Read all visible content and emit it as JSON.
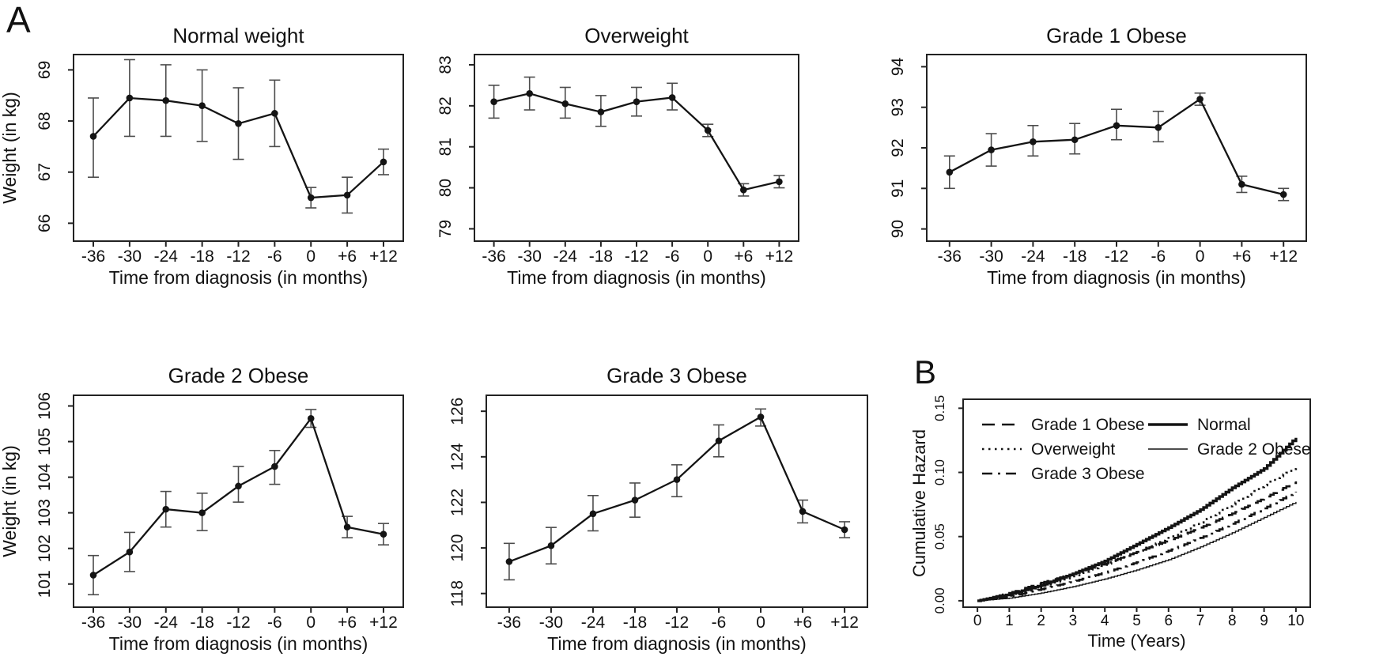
{
  "panel_a_label": "A",
  "panel_b_label": "B",
  "chart_data": [
    {
      "type": "line",
      "panel": "A",
      "title": "Normal weight",
      "xlabel": "Time from diagnosis (in months)",
      "ylabel": "Weight (in kg)",
      "error_bars": true,
      "categories": [
        "-36",
        "-30",
        "-24",
        "-18",
        "-12",
        "-6",
        "0",
        "+6",
        "+12"
      ],
      "values": [
        67.7,
        68.45,
        68.4,
        68.3,
        67.95,
        68.15,
        66.5,
        66.55,
        67.2
      ],
      "err_low": [
        66.9,
        67.7,
        67.7,
        67.6,
        67.25,
        67.5,
        66.3,
        66.2,
        66.95
      ],
      "err_high": [
        68.45,
        69.2,
        69.1,
        69.0,
        68.65,
        68.8,
        66.7,
        66.9,
        67.45
      ],
      "yticks": [
        66,
        67,
        68,
        69
      ],
      "ytick_labels": [
        "66",
        "67",
        "68",
        "69"
      ],
      "ylim": [
        65.65,
        69.3
      ]
    },
    {
      "type": "line",
      "panel": "A",
      "title": "Overweight",
      "xlabel": "Time from diagnosis (in months)",
      "ylabel": null,
      "error_bars": true,
      "categories": [
        "-36",
        "-30",
        "-24",
        "-18",
        "-12",
        "-6",
        "0",
        "+6",
        "+12"
      ],
      "values": [
        82.1,
        82.3,
        82.05,
        81.85,
        82.1,
        82.2,
        81.4,
        79.95,
        80.15
      ],
      "err_low": [
        81.7,
        81.9,
        81.7,
        81.5,
        81.75,
        81.9,
        81.25,
        79.8,
        80.0
      ],
      "err_high": [
        82.5,
        82.7,
        82.45,
        82.25,
        82.45,
        82.55,
        81.55,
        80.1,
        80.3
      ],
      "yticks": [
        79,
        80,
        81,
        82,
        83
      ],
      "ytick_labels": [
        "79",
        "80",
        "81",
        "82",
        "83"
      ],
      "ylim": [
        78.7,
        83.25
      ]
    },
    {
      "type": "line",
      "panel": "A",
      "title": "Grade 1 Obese",
      "xlabel": "Time from diagnosis (in months)",
      "ylabel": null,
      "error_bars": true,
      "categories": [
        "-36",
        "-30",
        "-24",
        "-18",
        "-12",
        "-6",
        "0",
        "+6",
        "+12"
      ],
      "values": [
        91.4,
        91.95,
        92.15,
        92.2,
        92.55,
        92.5,
        93.2,
        91.1,
        90.85
      ],
      "err_low": [
        91.0,
        91.55,
        91.8,
        91.85,
        92.2,
        92.15,
        93.05,
        90.9,
        90.7
      ],
      "err_high": [
        91.8,
        92.35,
        92.55,
        92.6,
        92.95,
        92.9,
        93.35,
        91.3,
        91.0
      ],
      "yticks": [
        90,
        91,
        92,
        93,
        94
      ],
      "ytick_labels": [
        "90",
        "91",
        "92",
        "93",
        "94"
      ],
      "ylim": [
        89.7,
        94.3
      ]
    },
    {
      "type": "line",
      "panel": "A",
      "title": "Grade 2 Obese",
      "xlabel": "Time from diagnosis (in months)",
      "ylabel": "Weight (in kg)",
      "error_bars": true,
      "categories": [
        "-36",
        "-30",
        "-24",
        "-18",
        "-12",
        "-6",
        "0",
        "+6",
        "+12"
      ],
      "values": [
        101.25,
        101.9,
        103.1,
        103.0,
        103.75,
        104.3,
        105.65,
        102.6,
        102.4
      ],
      "err_low": [
        100.7,
        101.35,
        102.6,
        102.5,
        103.3,
        103.8,
        105.4,
        102.3,
        102.1
      ],
      "err_high": [
        101.8,
        102.45,
        103.6,
        103.55,
        104.3,
        104.75,
        105.9,
        102.9,
        102.7
      ],
      "yticks": [
        101,
        102,
        103,
        104,
        105,
        106
      ],
      "ytick_labels": [
        "101",
        "102",
        "103",
        "104",
        "105",
        "106"
      ],
      "ylim": [
        100.35,
        106.3
      ]
    },
    {
      "type": "line",
      "panel": "A",
      "title": "Grade 3 Obese",
      "xlabel": "Time from diagnosis (in months)",
      "ylabel": null,
      "error_bars": true,
      "categories": [
        "-36",
        "-30",
        "-24",
        "-18",
        "-12",
        "-6",
        "0",
        "+6",
        "+12"
      ],
      "values": [
        119.4,
        120.1,
        121.5,
        122.1,
        123.0,
        124.7,
        125.75,
        121.6,
        120.8
      ],
      "err_low": [
        118.6,
        119.3,
        120.75,
        121.35,
        122.25,
        124.0,
        125.35,
        121.1,
        120.45
      ],
      "err_high": [
        120.2,
        120.9,
        122.3,
        122.85,
        123.65,
        125.4,
        126.1,
        122.1,
        121.15
      ],
      "yticks": [
        118,
        120,
        122,
        124,
        126
      ],
      "ytick_labels": [
        "118",
        "120",
        "122",
        "124",
        "126"
      ],
      "ylim": [
        117.4,
        126.7
      ]
    },
    {
      "type": "line",
      "subtype": "step",
      "panel": "B",
      "title": "",
      "xlabel": "Time (Years)",
      "ylabel": "Cumulative Hazard",
      "x": [
        0,
        1,
        2,
        3,
        4,
        5,
        6,
        7,
        8,
        9,
        10
      ],
      "xtick_labels": [
        "0",
        "1",
        "2",
        "3",
        "4",
        "5",
        "6",
        "7",
        "8",
        "9",
        "10"
      ],
      "yticks": [
        0.0,
        0.05,
        0.1,
        0.15
      ],
      "ytick_labels": [
        "0.00",
        "0.05",
        "0.10",
        "0.15"
      ],
      "ylim": [
        -0.005,
        0.157
      ],
      "xlim": [
        -0.45,
        10.45
      ],
      "series": [
        {
          "name": "Grade 2 Obese",
          "style": "solid-thin",
          "values": [
            0,
            0.002,
            0.006,
            0.011,
            0.017,
            0.024,
            0.032,
            0.042,
            0.053,
            0.065,
            0.077
          ]
        },
        {
          "name": "Grade 3 Obese",
          "style": "dashdot",
          "values": [
            0,
            0.003,
            0.009,
            0.015,
            0.022,
            0.03,
            0.039,
            0.049,
            0.06,
            0.072,
            0.085
          ]
        },
        {
          "name": "Grade 1 Obese",
          "style": "dashed",
          "values": [
            0,
            0.006,
            0.014,
            0.021,
            0.029,
            0.038,
            0.047,
            0.057,
            0.068,
            0.08,
            0.093
          ]
        },
        {
          "name": "Overweight",
          "style": "dotted",
          "values": [
            0,
            0.004,
            0.011,
            0.019,
            0.028,
            0.038,
            0.049,
            0.061,
            0.075,
            0.09,
            0.104
          ]
        },
        {
          "name": "Normal",
          "style": "solid-thick",
          "values": [
            0,
            0.005,
            0.012,
            0.021,
            0.031,
            0.044,
            0.057,
            0.071,
            0.088,
            0.103,
            0.127
          ]
        }
      ],
      "legend": [
        {
          "label": "Grade 1 Obese",
          "style": "dashed",
          "col": 0,
          "row": 0
        },
        {
          "label": "Overweight",
          "style": "dotted",
          "col": 0,
          "row": 1
        },
        {
          "label": "Grade 3 Obese",
          "style": "dashdot",
          "col": 0,
          "row": 2
        },
        {
          "label": "Normal",
          "style": "solid-thick",
          "col": 1,
          "row": 0
        },
        {
          "label": "Grade 2 Obese",
          "style": "solid-thin",
          "col": 1,
          "row": 1
        }
      ],
      "legend_position": "top-left"
    }
  ]
}
